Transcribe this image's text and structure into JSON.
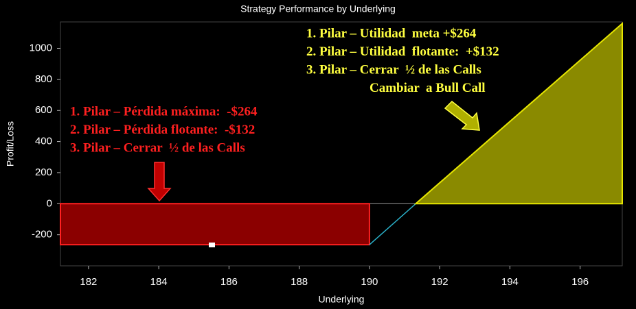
{
  "chart_data": {
    "type": "payoff",
    "title": "Strategy Performance by Underlying",
    "xlabel": "Underlying",
    "ylabel": "Profit/Loss",
    "x": [
      181.2,
      190,
      191.32,
      197.2
    ],
    "values": [
      -264,
      -264,
      0,
      1160
    ],
    "loss_color": "#8b0000",
    "profit_color": "#8a8a00",
    "line_color": "#2ab0c8",
    "xlim": [
      181.2,
      197.2
    ],
    "xticks": [
      182,
      184,
      186,
      188,
      190,
      192,
      194,
      196
    ],
    "ylim": [
      -400,
      1170
    ],
    "yticks": [
      -200,
      0,
      200,
      400,
      600,
      800,
      1000
    ],
    "annotations": [
      {
        "color": "#ff2020",
        "lines": [
          "1. Pilar – Pérdida máxima:  -$264",
          "2. Pilar – Pérdida flotante:  -$132",
          "3. Pilar – Cerrar  ½ de las Calls"
        ]
      },
      {
        "color": "#ffff40",
        "lines": [
          "1. Pilar – Utilidad  meta +$264",
          "2. Pilar – Utilidad  flotante:  +$132",
          "3. Pilar – Cerrar  ½ de las Calls",
          "Cambiar  a Bull Call"
        ]
      }
    ]
  }
}
